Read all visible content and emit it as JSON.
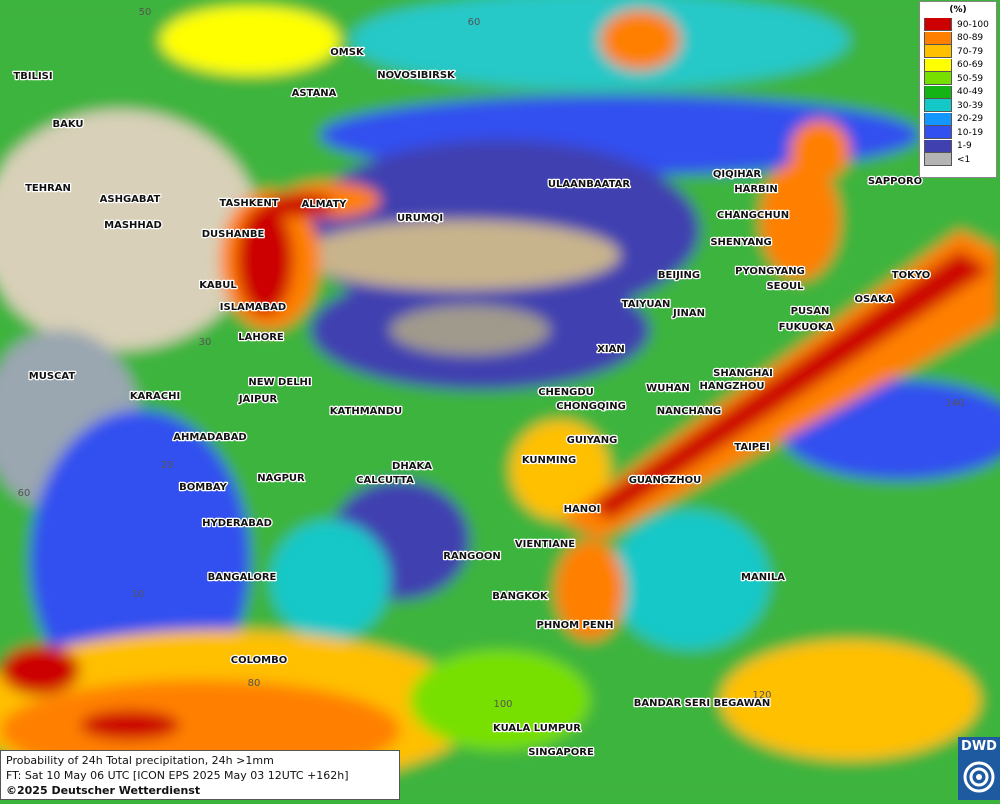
{
  "map": {
    "cities": [
      "OMSK",
      "NOVOSIBIRSK",
      "ASTANA",
      "TBILISI",
      "BAKU",
      "TEHRAN",
      "ASHGABAT",
      "MASHHAD",
      "TASHKENT",
      "ALMATY",
      "URUMQI",
      "ULAANBAATAR",
      "QIQIHAR",
      "HARBIN",
      "CHANGCHUN",
      "SAPPORO",
      "SHENYANG",
      "DUSHANBE",
      "KABUL",
      "ISLAMABAD",
      "LAHORE",
      "BEIJING",
      "PYONGYANG",
      "SEOUL",
      "TOKYO",
      "OSAKA",
      "PUSAN",
      "FUKUOKA",
      "TAIYUAN",
      "JINAN",
      "XIAN",
      "MUSCAT",
      "NEW DELHI",
      "SHANGHAI",
      "HANGZHOU",
      "WUHAN",
      "CHENGDU",
      "CHONGQING",
      "KARACHI",
      "JAIPUR",
      "KATHMANDU",
      "NANCHANG",
      "AHMADABAD",
      "GUIYANG",
      "TAIPEI",
      "KUNMING",
      "DHAKA",
      "NAGPUR",
      "CALCUTTA",
      "GUANGZHOU",
      "BOMBAY",
      "HANOI",
      "HYDERABAD",
      "VIENTIANE",
      "RANGOON",
      "BANGALORE",
      "MANILA",
      "BANGKOK",
      "PHNOM PENH",
      "COLOMBO",
      "BANDAR SERI BEGAWAN",
      "KUALA LUMPUR",
      "SINGAPORE"
    ],
    "graticule_labels": [
      "50",
      "60",
      "30",
      "20",
      "60",
      "10",
      "80",
      "100",
      "120",
      "140"
    ]
  },
  "legend": {
    "title": "(%)",
    "items": [
      {
        "label": "90-100",
        "color": "#cc0000"
      },
      {
        "label": "80-89",
        "color": "#ff8000"
      },
      {
        "label": "70-79",
        "color": "#ffc000"
      },
      {
        "label": "60-69",
        "color": "#ffff00"
      },
      {
        "label": "50-59",
        "color": "#78e000"
      },
      {
        "label": "40-49",
        "color": "#14b414"
      },
      {
        "label": "30-39",
        "color": "#14c8c8"
      },
      {
        "label": "20-29",
        "color": "#1496ff"
      },
      {
        "label": "10-19",
        "color": "#3250f0"
      },
      {
        "label": "1-9",
        "color": "#4040b0"
      },
      {
        "label": "<1",
        "color": "#b4b4b4"
      }
    ]
  },
  "footer": {
    "line1": "Probability of 24h Total precipitation, 24h >1mm",
    "line2": "FT: Sat 10 May 06 UTC [ICON EPS 2025 May 03 12UTC +162h]",
    "line3": "©2025 Deutscher Wetterdienst"
  },
  "logo": {
    "text": "DWD"
  }
}
